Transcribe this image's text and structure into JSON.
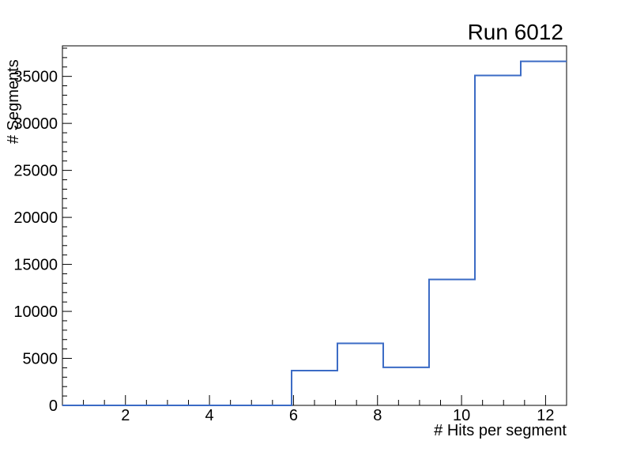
{
  "chart_data": {
    "type": "line",
    "style": "histogram-step",
    "title": "Run 6012",
    "xlabel": "# Hits per segment",
    "ylabel": "# Segments",
    "bin_edges": [
      0.5,
      1.591,
      2.682,
      3.773,
      4.864,
      5.955,
      7.045,
      8.136,
      9.227,
      10.318,
      11.409,
      12.5
    ],
    "values": [
      0,
      0,
      0,
      0,
      0,
      3700,
      6600,
      4050,
      13400,
      35100,
      36600
    ],
    "xlim": [
      0.5,
      12.5
    ],
    "ylim": [
      0,
      38250
    ],
    "x_major_ticks": [
      2,
      4,
      6,
      8,
      10,
      12
    ],
    "x_minor_tick_start": 1,
    "x_minor_tick_step": 0.5,
    "y_major_ticks": [
      0,
      5000,
      10000,
      15000,
      20000,
      25000,
      30000,
      35000
    ],
    "y_minor_tick_step": 1000,
    "grid": false,
    "legend": false,
    "line_color": "#3b6bc5",
    "axis_color": "#000000",
    "background_color": "#ffffff"
  }
}
